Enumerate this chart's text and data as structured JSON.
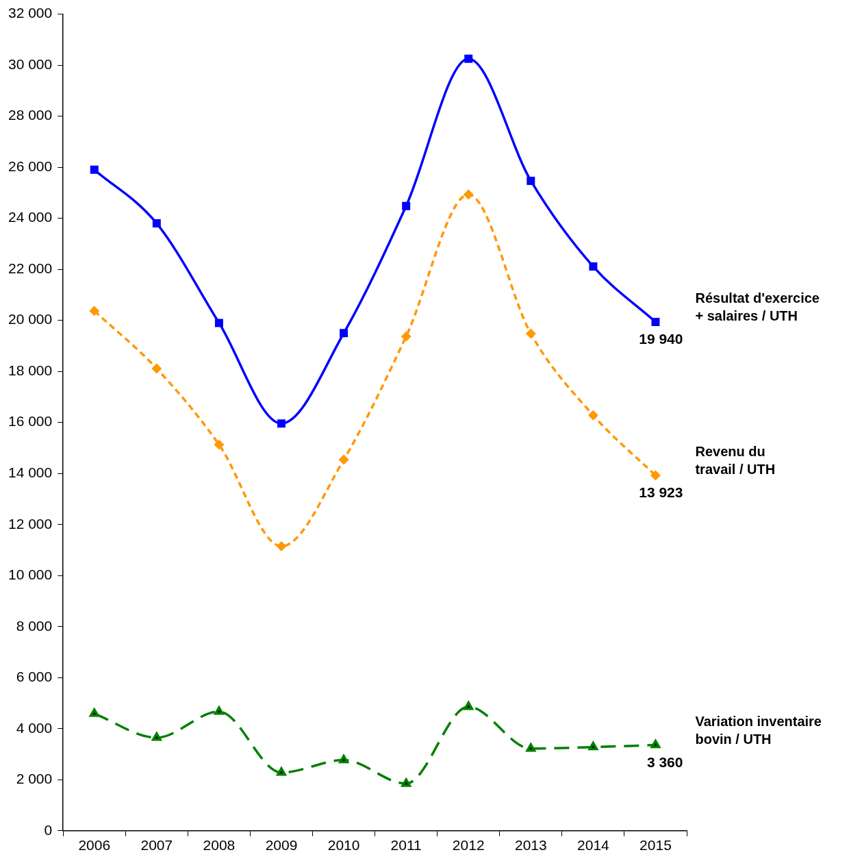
{
  "chart_data": {
    "type": "line",
    "categories": [
      "2006",
      "2007",
      "2008",
      "2009",
      "2010",
      "2011",
      "2012",
      "2013",
      "2014",
      "2015"
    ],
    "series": [
      {
        "name": "Résultat d'exercice\n+ salaires / UTH",
        "color": "#0000ff",
        "marker": "square",
        "line_style": "solid",
        "values": [
          25900,
          23800,
          19900,
          15960,
          19500,
          24480,
          30250,
          25470,
          22110,
          19940
        ],
        "value_labels": [
          null,
          null,
          null,
          null,
          null,
          null,
          null,
          null,
          null,
          "19 940"
        ]
      },
      {
        "name": "Revenu du\ntravail / UTH",
        "color": "#ff9900",
        "marker": "diamond",
        "line_style": "dotted",
        "values": [
          20370,
          18110,
          15130,
          11150,
          14540,
          19370,
          24930,
          19480,
          16280,
          13923
        ],
        "value_labels": [
          null,
          null,
          null,
          null,
          null,
          null,
          null,
          null,
          null,
          "13 923"
        ]
      },
      {
        "name": "Variation inventaire\nbovin / UTH",
        "color": "#008000",
        "marker": "triangle",
        "line_style": "dashed",
        "values": [
          4590,
          3650,
          4670,
          2280,
          2770,
          1850,
          4860,
          3220,
          3280,
          3360
        ],
        "value_labels": [
          null,
          null,
          null,
          null,
          null,
          null,
          null,
          null,
          null,
          "3 360"
        ]
      }
    ],
    "ylim": [
      0,
      32000
    ],
    "yticks": [
      {
        "value": 0,
        "label": "0"
      },
      {
        "value": 2000,
        "label": "2 000"
      },
      {
        "value": 4000,
        "label": "4 000"
      },
      {
        "value": 6000,
        "label": "6 000"
      },
      {
        "value": 8000,
        "label": "8 000"
      },
      {
        "value": 10000,
        "label": "10 000"
      },
      {
        "value": 12000,
        "label": "12 000"
      },
      {
        "value": 14000,
        "label": "14 000"
      },
      {
        "value": 16000,
        "label": "16 000"
      },
      {
        "value": 18000,
        "label": "18 000"
      },
      {
        "value": 20000,
        "label": "20 000"
      },
      {
        "value": 22000,
        "label": "22 000"
      },
      {
        "value": 24000,
        "label": "24 000"
      },
      {
        "value": 26000,
        "label": "26 000"
      },
      {
        "value": 28000,
        "label": "28 000"
      },
      {
        "value": 30000,
        "label": "30 000"
      },
      {
        "value": 32000,
        "label": "32 000"
      }
    ],
    "grid": false,
    "legend": false
  }
}
